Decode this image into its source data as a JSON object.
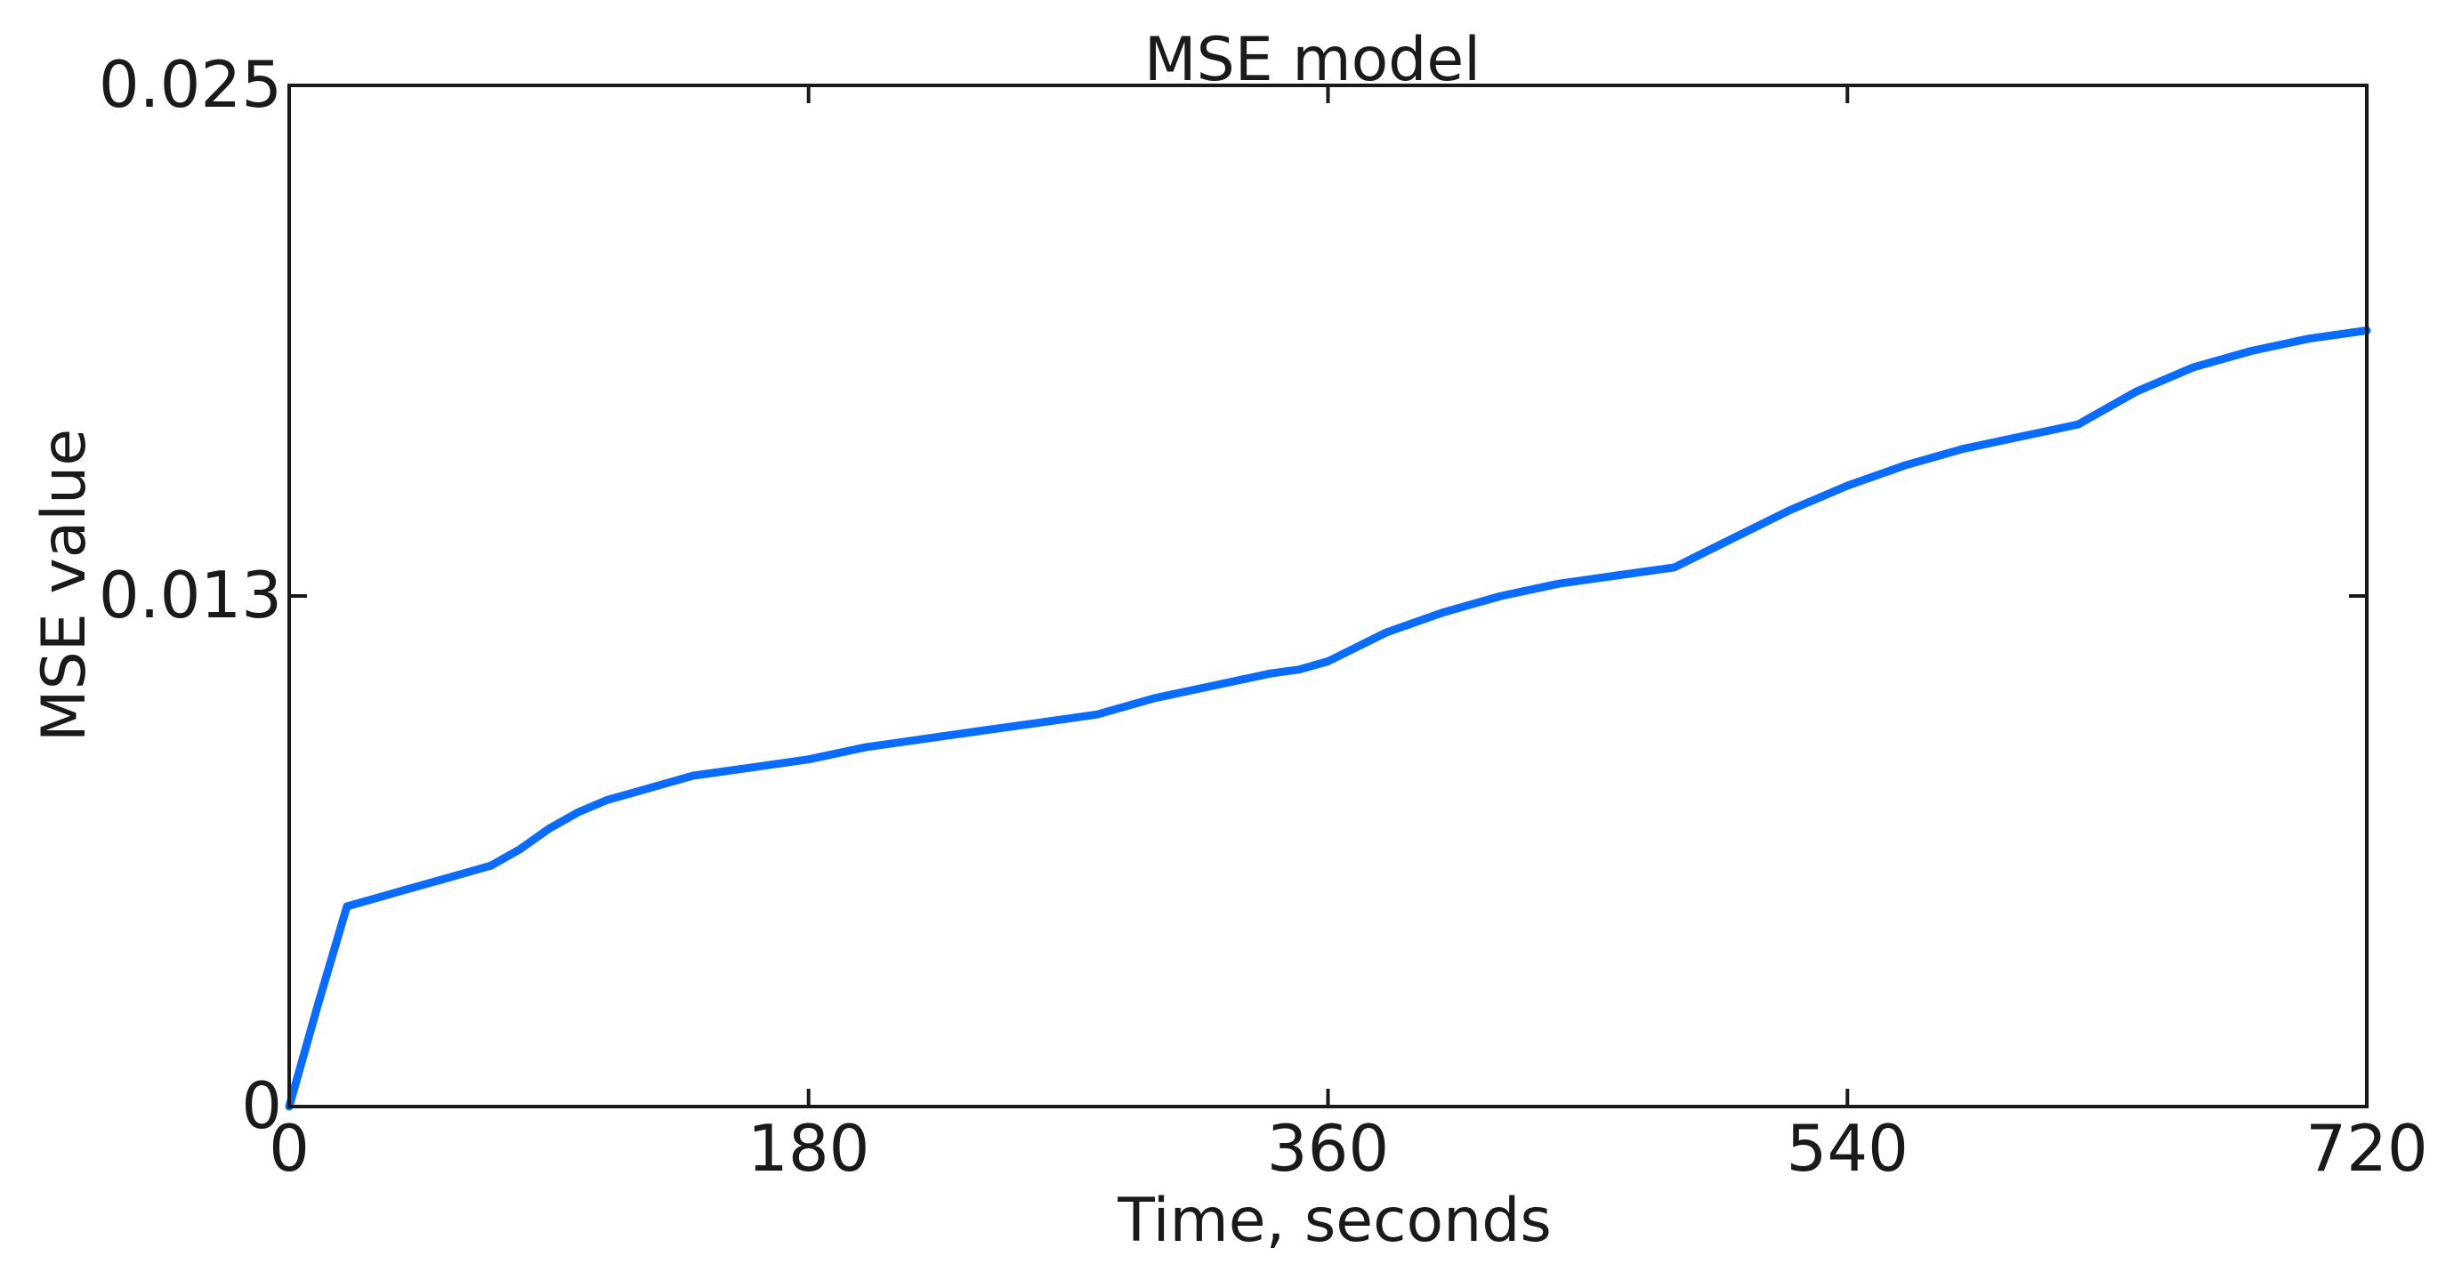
{
  "chart_data": {
    "type": "line",
    "title": "MSE model",
    "xlabel": "Time, seconds",
    "ylabel": "MSE value",
    "xlim": [
      0,
      720
    ],
    "ylim": [
      0,
      0.025
    ],
    "x_ticks": [
      0,
      180,
      360,
      540,
      720
    ],
    "x_tick_labels": [
      "0",
      "180",
      "360",
      "540",
      "720"
    ],
    "y_ticks": [
      0,
      0.0125,
      0.025
    ],
    "y_tick_labels": [
      "0",
      "0.013",
      "0.025"
    ],
    "grid": false,
    "colors": {
      "line": "#0a6cff",
      "axes": "#1a1a1a"
    },
    "series": [
      {
        "x": [
          0,
          10,
          20,
          30,
          40,
          50,
          60,
          70,
          80,
          90,
          100,
          110,
          120,
          130,
          140,
          150,
          160,
          170,
          180,
          200,
          220,
          240,
          260,
          280,
          300,
          320,
          340,
          350,
          360,
          380,
          400,
          420,
          440,
          460,
          480,
          500,
          520,
          540,
          560,
          580,
          600,
          620,
          640,
          660,
          680,
          700,
          720
        ],
        "y": [
          0,
          0.0025,
          0.0049,
          0.0051,
          0.0053,
          0.0055,
          0.0057,
          0.0059,
          0.0063,
          0.0068,
          0.0072,
          0.0075,
          0.0077,
          0.0079,
          0.0081,
          0.0082,
          0.0083,
          0.0084,
          0.0085,
          0.0088,
          0.009,
          0.0092,
          0.0094,
          0.0096,
          0.01,
          0.0103,
          0.0106,
          0.0107,
          0.0109,
          0.0116,
          0.0121,
          0.0125,
          0.0128,
          0.013,
          0.0132,
          0.0139,
          0.0146,
          0.0152,
          0.0157,
          0.0161,
          0.0164,
          0.0167,
          0.0175,
          0.0181,
          0.0185,
          0.0188,
          0.019
        ]
      }
    ]
  }
}
